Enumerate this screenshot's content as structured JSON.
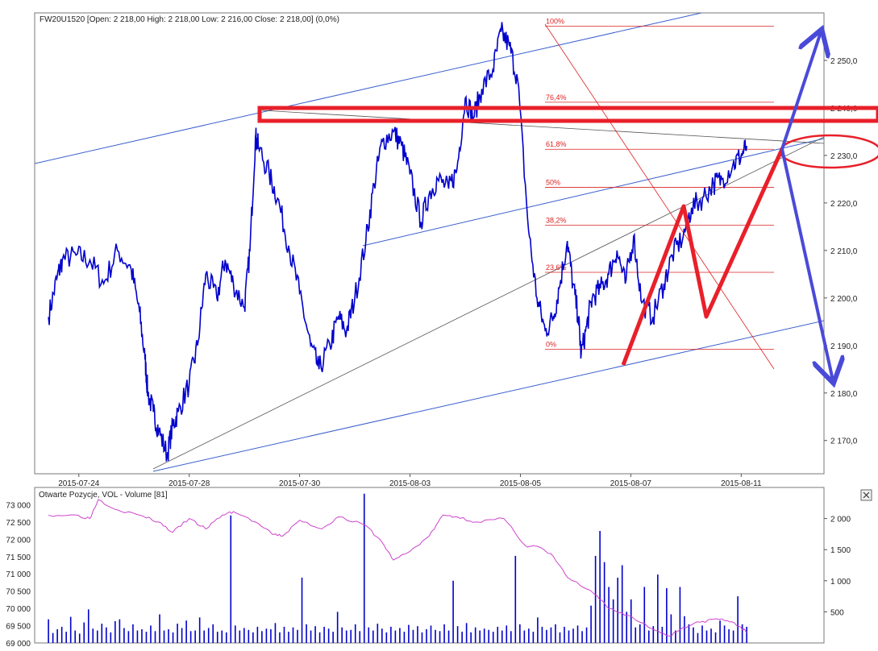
{
  "header": {
    "instrument": "FW20U1520",
    "ohlc_text": "FW20U1520 [Open: 2 218,00  High: 2 218,00  Low: 2 216,00  Close: 2 218,00] (0,0%)"
  },
  "volume_panel": {
    "title": "Otwarte Pozycje, VOL - Volume [81]",
    "close_icon": "close-icon"
  },
  "colors": {
    "price": "#0000cc",
    "fib": "#dd2222",
    "drawing_red": "#e8202a",
    "drawing_blue": "#4a4ad8",
    "channel": "#3a5fcd",
    "trend_gray": "#555555",
    "oi": "#cc44cc",
    "volume": "#0000cc"
  },
  "chart_data": [
    {
      "type": "line",
      "name": "price",
      "ylim": [
        2163,
        2260
      ],
      "yticks": [
        "2 170,0",
        "2 180,0",
        "2 190,0",
        "2 200,0",
        "2 210,0",
        "2 220,0",
        "2 230,0",
        "2 240,0",
        "2 250,0"
      ],
      "ytick_values": [
        2170,
        2180,
        2190,
        2200,
        2210,
        2220,
        2230,
        2240,
        2250
      ],
      "xticks": [
        "2015-07-24",
        "2015-07-28",
        "2015-07-30",
        "2015-08-03",
        "2015-08-05",
        "2015-08-07",
        "2015-08-11"
      ],
      "xtick_pos": [
        1.6,
        5.6,
        9.6,
        13.6,
        17.6,
        21.6,
        25.6
      ],
      "xlim": [
        0,
        28.6
      ],
      "x": [
        0.5,
        0.8,
        1.0,
        1.5,
        2.0,
        2.5,
        3.0,
        3.5,
        3.8,
        4.0,
        4.1,
        4.3,
        4.5,
        4.8,
        5.0,
        5.2,
        5.6,
        5.9,
        6.2,
        6.6,
        6.9,
        7.2,
        7.6,
        7.8,
        8.0,
        8.1,
        8.5,
        8.8,
        9.2,
        9.6,
        10.0,
        10.3,
        10.7,
        11.0,
        11.3,
        11.6,
        12.0,
        12.3,
        12.6,
        13.0,
        13.3,
        13.6,
        14.0,
        14.3,
        14.6,
        15.0,
        15.3,
        15.6,
        15.9,
        16.2,
        16.6,
        16.9,
        17.2,
        17.5,
        17.9,
        18.2,
        18.5,
        18.8,
        19.0,
        19.3,
        19.5,
        19.7,
        19.8,
        20.0,
        20.2,
        20.5,
        20.8,
        21.1,
        21.4,
        21.7,
        22.0,
        22.4,
        22.8,
        23.1,
        23.5,
        23.8,
        24.2,
        24.6,
        24.9,
        25.3,
        25.6,
        25.8
      ],
      "values": [
        2196,
        2204,
        2208,
        2209,
        2208,
        2203,
        2210,
        2206,
        2197,
        2187,
        2180,
        2176,
        2172,
        2167,
        2173,
        2176,
        2182,
        2190,
        2205,
        2200,
        2208,
        2203,
        2198,
        2210,
        2234,
        2232,
        2226,
        2221,
        2211,
        2201,
        2190,
        2185,
        2190,
        2196,
        2193,
        2200,
        2212,
        2224,
        2233,
        2235,
        2232,
        2226,
        2216,
        2222,
        2225,
        2223,
        2227,
        2242,
        2238,
        2244,
        2248,
        2256,
        2253,
        2246,
        2214,
        2200,
        2193,
        2196,
        2202,
        2212,
        2203,
        2196,
        2188,
        2194,
        2200,
        2202,
        2205,
        2210,
        2203,
        2213,
        2199,
        2196,
        2203,
        2209,
        2213,
        2219,
        2221,
        2224,
        2225,
        2228,
        2230,
        2232
      ]
    },
    {
      "type": "line",
      "name": "Otwarte Pozycje",
      "ylim": [
        69000,
        73500
      ],
      "yticks": [
        "69 000",
        "69 500",
        "70 000",
        "70 500",
        "71 000",
        "71 500",
        "72 000",
        "72 500",
        "73 000"
      ],
      "ytick_values": [
        69000,
        69500,
        70000,
        70500,
        71000,
        71500,
        72000,
        72500,
        73000
      ],
      "x": [
        0.5,
        1.5,
        2.0,
        2.3,
        3.0,
        3.8,
        4.5,
        5.0,
        5.6,
        6.2,
        6.8,
        7.2,
        8.0,
        8.6,
        9.0,
        9.6,
        10.4,
        11.0,
        12.0,
        12.6,
        13.0,
        13.6,
        14.3,
        14.8,
        15.3,
        16.0,
        17.0,
        17.8,
        18.2,
        18.8,
        19.3,
        20.3,
        20.8,
        21.5,
        22.4,
        23.0,
        23.5,
        24.1,
        24.7,
        25.1,
        25.6,
        25.8
      ],
      "values": [
        72700,
        72700,
        72600,
        73150,
        72850,
        72700,
        72500,
        72200,
        72600,
        72300,
        72700,
        72800,
        72500,
        72150,
        72100,
        72550,
        72300,
        72650,
        72400,
        71900,
        71400,
        71650,
        72100,
        72700,
        72650,
        72500,
        72600,
        71800,
        71800,
        71500,
        70900,
        70400,
        70000,
        69800,
        69400,
        69200,
        69450,
        69600,
        69700,
        69650,
        69450,
        69300
      ]
    },
    {
      "type": "bar",
      "name": "VOL - Volume",
      "ylim": [
        0,
        2500
      ],
      "yticks": [
        "500",
        "1 000",
        "1 500",
        "2 000"
      ],
      "ytick_values": [
        500,
        1000,
        1500,
        2000
      ],
      "values": [
        380,
        160,
        220,
        260,
        180,
        420,
        200,
        150,
        330,
        540,
        230,
        200,
        310,
        250,
        170,
        350,
        380,
        240,
        190,
        300,
        200,
        220,
        180,
        280,
        190,
        460,
        200,
        220,
        170,
        310,
        240,
        360,
        190,
        200,
        410,
        200,
        240,
        300,
        180,
        200,
        170,
        2050,
        280,
        200,
        240,
        210,
        170,
        260,
        190,
        230,
        220,
        320,
        170,
        260,
        180,
        250,
        210,
        1050,
        300,
        200,
        270,
        170,
        260,
        230,
        180,
        500,
        250,
        200,
        210,
        300,
        190,
        2400,
        250,
        200,
        310,
        230,
        170,
        260,
        200,
        240,
        180,
        290,
        210,
        270,
        170,
        220,
        280,
        210,
        190,
        300,
        200,
        1000,
        270,
        180,
        320,
        170,
        250,
        200,
        230,
        210,
        180,
        260,
        200,
        280,
        190,
        1400,
        300,
        200,
        230,
        180,
        410,
        260,
        210,
        250,
        300,
        170,
        260,
        200,
        230,
        280,
        190,
        250,
        600,
        1400,
        1800,
        1300,
        900,
        700,
        1050,
        1250,
        500,
        700,
        250,
        300,
        900,
        200,
        270,
        1100,
        260,
        880,
        460,
        200,
        900,
        430,
        300,
        250,
        160,
        280,
        200,
        230,
        170,
        360,
        280,
        220,
        200,
        750,
        300,
        260
      ]
    }
  ],
  "fibonacci": {
    "levels": [
      "100%",
      "76,4%",
      "61,8%",
      "50%",
      "38,2%",
      "23,6%",
      "0%"
    ],
    "level_values": [
      2257.2,
      2241.2,
      2231.3,
      2223.3,
      2215.3,
      2205.4,
      2189.2
    ]
  }
}
